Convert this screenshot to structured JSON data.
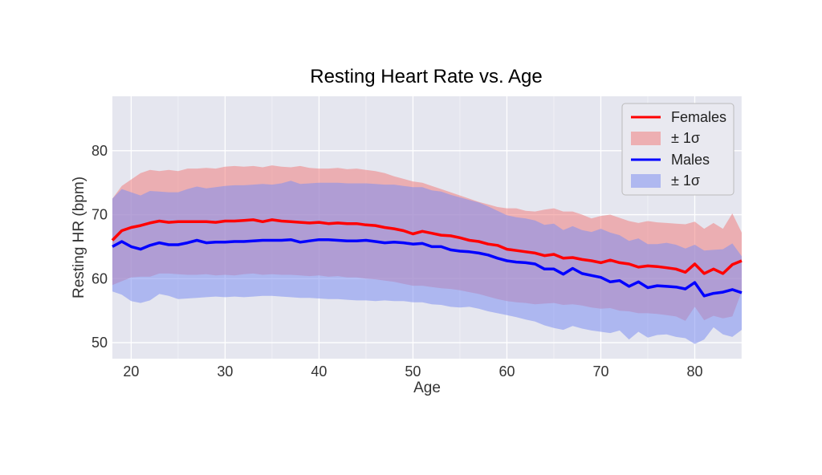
{
  "chart_data": {
    "type": "line",
    "title": "Resting Heart Rate vs. Age",
    "xlabel": "Age",
    "ylabel": "Resting HR (bpm)",
    "xlim": [
      18,
      85
    ],
    "ylim": [
      47.5,
      88.5
    ],
    "xticks": [
      20,
      30,
      40,
      50,
      60,
      70,
      80
    ],
    "yticks": [
      50,
      60,
      70,
      80
    ],
    "grid": true,
    "legend_position": "top-right",
    "x": [
      18,
      19,
      20,
      21,
      22,
      23,
      24,
      25,
      26,
      27,
      28,
      29,
      30,
      31,
      32,
      33,
      34,
      35,
      36,
      37,
      38,
      39,
      40,
      41,
      42,
      43,
      44,
      45,
      46,
      47,
      48,
      49,
      50,
      51,
      52,
      53,
      54,
      55,
      56,
      57,
      58,
      59,
      60,
      61,
      62,
      63,
      64,
      65,
      66,
      67,
      68,
      69,
      70,
      71,
      72,
      73,
      74,
      75,
      76,
      77,
      78,
      79,
      80,
      81,
      82,
      83,
      84,
      85
    ],
    "series": [
      {
        "name": "Females",
        "band_label": "± 1σ",
        "color": "#ff0000",
        "band_color": "#f08080",
        "values": [
          66,
          67.5,
          68,
          68.3,
          68.7,
          69,
          68.8,
          68.9,
          68.9,
          68.9,
          68.9,
          68.8,
          69,
          69,
          69.1,
          69.2,
          68.9,
          69.2,
          69,
          68.9,
          68.8,
          68.7,
          68.8,
          68.6,
          68.7,
          68.6,
          68.6,
          68.4,
          68.3,
          68,
          67.8,
          67.5,
          67,
          67.4,
          67.1,
          66.8,
          66.7,
          66.4,
          66,
          65.8,
          65.4,
          65.2,
          64.6,
          64.4,
          64.2,
          64,
          63.6,
          63.8,
          63.2,
          63.3,
          63,
          62.8,
          62.5,
          62.9,
          62.5,
          62.3,
          61.8,
          62,
          61.9,
          61.7,
          61.5,
          61,
          62.3,
          60.8,
          61.5,
          60.8,
          62.2,
          62.8
        ],
        "upper": [
          72.5,
          74.5,
          75.5,
          76.5,
          77,
          76.8,
          77,
          76.8,
          77.2,
          77.2,
          77.3,
          77.2,
          77.5,
          77.6,
          77.5,
          77.6,
          77.4,
          77.7,
          77.5,
          77.4,
          77.6,
          77.3,
          77.2,
          77.2,
          77.3,
          77.1,
          77.2,
          77,
          76.8,
          76.5,
          76,
          75.6,
          75.2,
          75,
          74.5,
          74,
          73.5,
          73,
          72.5,
          72,
          71.6,
          71.2,
          71,
          71,
          70.6,
          70.5,
          70.8,
          71,
          70.5,
          70.5,
          70,
          69.4,
          69.8,
          70,
          69.5,
          69,
          68.7,
          69,
          68.8,
          68.7,
          68.6,
          68.5,
          68.9,
          67.8,
          68.7,
          67.8,
          70.2,
          67.2
        ],
        "lower": [
          59,
          59.6,
          60.2,
          60.3,
          60.3,
          60.8,
          60.8,
          60.7,
          60.6,
          60.6,
          60.7,
          60.5,
          60.6,
          60.5,
          60.7,
          60.8,
          60.6,
          60.7,
          60.6,
          60.6,
          60.5,
          60.4,
          60.5,
          60.3,
          60.4,
          60.2,
          60.2,
          60,
          59.9,
          59.7,
          59.5,
          59.2,
          58.9,
          58.9,
          58.7,
          58.5,
          58.4,
          58.2,
          57.9,
          57.6,
          57.2,
          56.8,
          56.5,
          56.3,
          56.2,
          56,
          56.1,
          56.2,
          55.9,
          56,
          55.8,
          55.5,
          55.3,
          55.4,
          55,
          54.9,
          54.6,
          54.6,
          54.5,
          54.3,
          54.1,
          53.4,
          55.6,
          53.5,
          54.2,
          53.8,
          54.1,
          58
        ]
      },
      {
        "name": "Males",
        "band_label": "± 1σ",
        "color": "#0000ff",
        "band_color": "#8090f0",
        "values": [
          65,
          65.8,
          65,
          64.6,
          65.2,
          65.6,
          65.3,
          65.3,
          65.6,
          66,
          65.6,
          65.7,
          65.7,
          65.8,
          65.8,
          65.9,
          66,
          66,
          66,
          66.1,
          65.7,
          65.9,
          66.1,
          66.1,
          66,
          65.9,
          65.9,
          66,
          65.8,
          65.6,
          65.7,
          65.6,
          65.4,
          65.5,
          65,
          65,
          64.5,
          64.3,
          64.2,
          64,
          63.7,
          63.2,
          62.8,
          62.6,
          62.5,
          62.3,
          61.5,
          61.5,
          60.7,
          61.6,
          60.8,
          60.5,
          60.2,
          59.5,
          59.7,
          58.8,
          59.5,
          58.6,
          58.9,
          58.8,
          58.7,
          58.4,
          59.4,
          57.3,
          57.7,
          57.9,
          58.3,
          57.8
        ],
        "upper": [
          72.5,
          74,
          73.5,
          73,
          73.7,
          73.6,
          73.5,
          73.5,
          74,
          74.4,
          74.1,
          74.3,
          74.5,
          74.6,
          74.6,
          74.7,
          74.8,
          74.7,
          74.9,
          75.3,
          74.8,
          74.9,
          75,
          75,
          75,
          74.9,
          74.9,
          74.9,
          74.8,
          74.7,
          74.7,
          74.5,
          74.3,
          74.3,
          73.8,
          73.6,
          73.1,
          72.7,
          72.3,
          71.9,
          71.3,
          70.6,
          69.9,
          69.6,
          69.4,
          69.1,
          68.4,
          68.6,
          67.6,
          68.2,
          67.6,
          67.3,
          67.8,
          67.2,
          66.8,
          65.9,
          66.3,
          65.4,
          65.4,
          65.6,
          65.3,
          64.7,
          65.3,
          64.4,
          64.5,
          64.6,
          65.5,
          63.5
        ],
        "lower": [
          58,
          57.5,
          56.5,
          56.2,
          56.6,
          57.6,
          57.3,
          56.8,
          56.9,
          57,
          57.1,
          57.2,
          57.1,
          57.2,
          57.1,
          57.2,
          57.3,
          57.3,
          57.2,
          57.1,
          57,
          57,
          56.9,
          56.8,
          56.8,
          56.7,
          56.6,
          56.6,
          56.5,
          56.6,
          56.5,
          56.5,
          56.3,
          56.3,
          56,
          55.9,
          55.6,
          55.5,
          55.6,
          55.3,
          54.9,
          54.6,
          54.3,
          54,
          53.6,
          53.3,
          52.7,
          52.3,
          52,
          52.6,
          52.2,
          51.9,
          51.7,
          51.5,
          51.9,
          50.5,
          51.7,
          50.8,
          51.2,
          51.3,
          50.9,
          50.7,
          49.8,
          50.5,
          52.4,
          51.3,
          50.9,
          52
        ]
      }
    ]
  }
}
